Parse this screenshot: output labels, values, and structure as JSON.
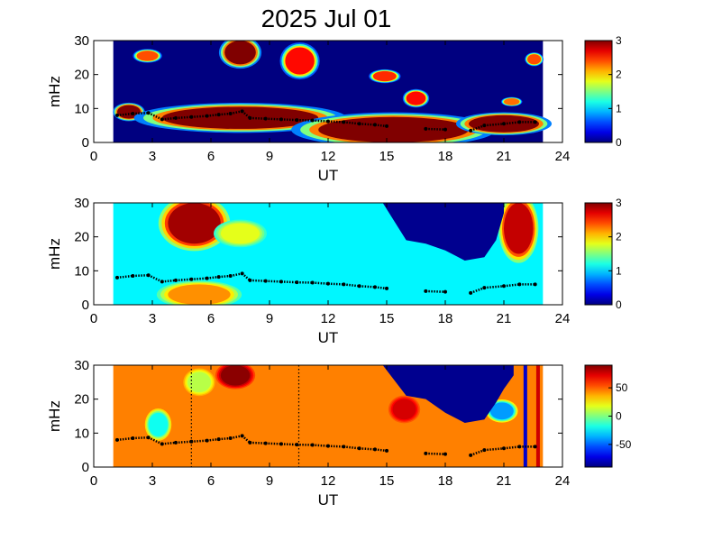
{
  "title": "2025 Jul 01",
  "colors": {
    "jet_low": "#00008f",
    "jet_high": "#800000",
    "track": "#000000"
  },
  "chart_data": [
    {
      "type": "heatmap",
      "panel": "power-spectrogram",
      "xlabel": "UT",
      "ylabel": "mHz",
      "xlim": [
        0,
        24
      ],
      "ylim": [
        0,
        30
      ],
      "xticks": [
        "0",
        "3",
        "6",
        "9",
        "12",
        "15",
        "18",
        "21",
        "24"
      ],
      "yticks": [
        "0",
        "10",
        "20",
        "30"
      ],
      "data_range_ut": [
        1.0,
        23.0
      ],
      "colorbar": {
        "range": [
          0,
          3
        ],
        "ticks": [
          "0",
          "1",
          "2",
          "3"
        ]
      },
      "blobs": [
        {
          "ut": [
            1.2,
            2.4
          ],
          "mhz": [
            7,
            11
          ],
          "value": 3
        },
        {
          "ut": [
            3.5,
            11.5
          ],
          "mhz": [
            4,
            10.5
          ],
          "value": 3
        },
        {
          "ut": [
            11.5,
            19.2
          ],
          "mhz": [
            0,
            7.5
          ],
          "value": 3
        },
        {
          "ut": [
            19.2,
            22.8
          ],
          "mhz": [
            3,
            8
          ],
          "value": 3
        },
        {
          "ut": [
            6.7,
            8.3
          ],
          "mhz": [
            23,
            30
          ],
          "value": 3
        },
        {
          "ut": [
            2.2,
            3.3
          ],
          "mhz": [
            24,
            27
          ],
          "value": 2.4
        },
        {
          "ut": [
            9.8,
            11.3
          ],
          "mhz": [
            20,
            28
          ],
          "value": 2.6
        },
        {
          "ut": [
            14.3,
            15.5
          ],
          "mhz": [
            18,
            21
          ],
          "value": 2.5
        },
        {
          "ut": [
            16.0,
            17.0
          ],
          "mhz": [
            11,
            15
          ],
          "value": 2.6
        },
        {
          "ut": [
            21.0,
            21.8
          ],
          "mhz": [
            11,
            13
          ],
          "value": 2.3
        },
        {
          "ut": [
            22.2,
            22.9
          ],
          "mhz": [
            23,
            26
          ],
          "value": 2.4
        }
      ]
    },
    {
      "type": "heatmap",
      "panel": "coherence-spectrogram",
      "xlabel": "UT",
      "ylabel": "mHz",
      "xlim": [
        0,
        24
      ],
      "ylim": [
        0,
        30
      ],
      "xticks": [
        "0",
        "3",
        "6",
        "9",
        "12",
        "15",
        "18",
        "21",
        "24"
      ],
      "yticks": [
        "0",
        "10",
        "20",
        "30"
      ],
      "data_range_ut": [
        1.0,
        23.0
      ],
      "background_value": 1.1,
      "colorbar": {
        "range": [
          0,
          3
        ],
        "ticks": [
          "0",
          "1",
          "2",
          "3"
        ]
      },
      "blobs": [
        {
          "ut": [
            3.8,
            6.5
          ],
          "mhz": [
            18,
            30
          ],
          "value": 2.9
        },
        {
          "ut": [
            3.8,
            7.0
          ],
          "mhz": [
            0,
            6
          ],
          "value": 2.2
        },
        {
          "ut": [
            21.0,
            22.5
          ],
          "mhz": [
            15,
            30
          ],
          "value": 2.8
        },
        {
          "ut": [
            6.5,
            8.5
          ],
          "mhz": [
            18,
            24
          ],
          "value": 1.8
        }
      ],
      "masked_region": {
        "ut": [
          14.8,
          16.0,
          17.0,
          18.0,
          19.0,
          20.0,
          20.6,
          21.0,
          21.0,
          14.8
        ],
        "mhz": [
          30,
          19,
          18,
          16,
          13,
          14,
          19,
          27,
          30,
          30
        ]
      }
    },
    {
      "type": "heatmap",
      "panel": "phase-spectrogram",
      "xlabel": "UT",
      "ylabel": "mHz",
      "xlim": [
        0,
        24
      ],
      "ylim": [
        0,
        30
      ],
      "xticks": [
        "0",
        "3",
        "6",
        "9",
        "12",
        "15",
        "18",
        "21",
        "24"
      ],
      "yticks": [
        "0",
        "10",
        "20",
        "30"
      ],
      "data_range_ut": [
        1.0,
        23.0
      ],
      "background_value": 45,
      "colorbar": {
        "range": [
          -90,
          90
        ],
        "ticks": [
          "50",
          "0",
          "-50"
        ],
        "tick_values": [
          50,
          0,
          -50
        ]
      },
      "blobs": [
        {
          "ut": [
            6.5,
            8.0
          ],
          "mhz": [
            24,
            30
          ],
          "value": 88
        },
        {
          "ut": [
            2.8,
            3.8
          ],
          "mhz": [
            9,
            16
          ],
          "value": -20
        },
        {
          "ut": [
            4.8,
            6.0
          ],
          "mhz": [
            22,
            28
          ],
          "value": 10
        },
        {
          "ut": [
            15.3,
            16.5
          ],
          "mhz": [
            14,
            20
          ],
          "value": 75
        },
        {
          "ut": [
            20.3,
            21.5
          ],
          "mhz": [
            14,
            19
          ],
          "value": -40
        }
      ],
      "masked_region": {
        "ut": [
          14.8,
          16.0,
          17.0,
          18.0,
          19.0,
          20.0,
          20.6,
          21.0,
          21.5,
          21.5,
          14.8
        ],
        "mhz": [
          30,
          21,
          20,
          16,
          13,
          14,
          19,
          23,
          27,
          30,
          30
        ]
      },
      "vertical_markers": [
        {
          "ut": 5.0,
          "style": "dotted"
        },
        {
          "ut": 10.5,
          "style": "dotted"
        }
      ],
      "vertical_bands": [
        {
          "ut": 22.1,
          "color": "#0000cc"
        },
        {
          "ut": 22.75,
          "color": "#cc0000"
        }
      ]
    }
  ],
  "track": {
    "name": "peak frequency",
    "ut": [
      1.2,
      2.0,
      2.8,
      3.5,
      4.2,
      5.0,
      5.8,
      6.4,
      7.0,
      7.6,
      8.0,
      8.8,
      9.6,
      10.4,
      11.2,
      12.0,
      12.8,
      13.6,
      14.4,
      15.0,
      17.0,
      18.0,
      19.3,
      20.0,
      21.0,
      21.8,
      22.6
    ],
    "mhz": [
      8,
      8.5,
      8.7,
      6.8,
      7.2,
      7.5,
      7.8,
      8.2,
      8.5,
      9.2,
      7.2,
      7.0,
      6.8,
      6.6,
      6.5,
      6.2,
      6.0,
      5.5,
      5.2,
      4.8,
      4.0,
      3.8,
      3.5,
      5.0,
      5.5,
      6.0,
      6.0
    ]
  }
}
